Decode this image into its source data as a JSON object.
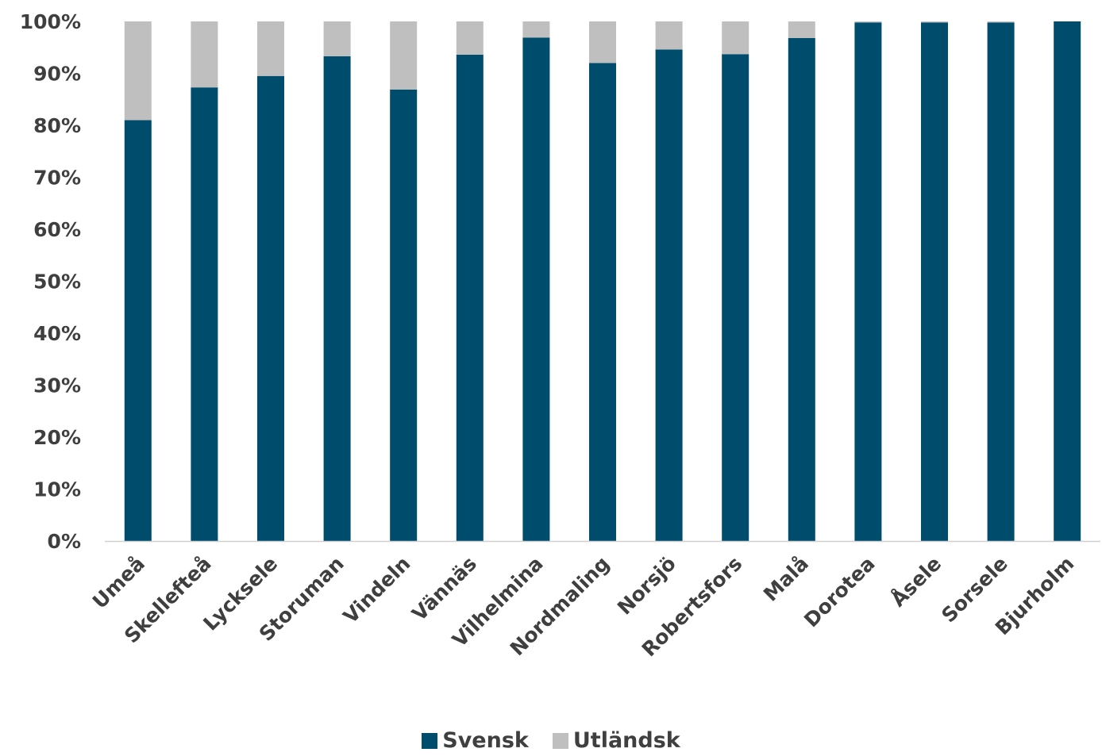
{
  "chart_data": {
    "type": "bar",
    "stacked": true,
    "percent": true,
    "categories": [
      "Umeå",
      "Skellefteå",
      "Lycksele",
      "Storuman",
      "Vindeln",
      "Vännäs",
      "Vilhelmina",
      "Nordmaling",
      "Norsjö",
      "Robertsfors",
      "Malå",
      "Dorotea",
      "Åsele",
      "Sorsele",
      "Bjurholm"
    ],
    "series": [
      {
        "name": "Svensk",
        "color": "#004c6d",
        "values": [
          81,
          87.3,
          89.5,
          93.3,
          86.9,
          93.6,
          96.9,
          92,
          94.6,
          93.7,
          96.8,
          99.8,
          99.8,
          99.8,
          100
        ]
      },
      {
        "name": "Utländsk",
        "color": "#bfbfbf",
        "values": [
          19,
          12.7,
          10.5,
          6.7,
          13.1,
          6.4,
          3.1,
          8,
          5.4,
          6.3,
          3.2,
          0.2,
          0.2,
          0.2,
          0
        ]
      }
    ],
    "ylim": [
      0,
      100
    ],
    "yticks": [
      "0%",
      "10%",
      "20%",
      "30%",
      "40%",
      "50%",
      "60%",
      "70%",
      "80%",
      "90%",
      "100%"
    ],
    "title": "",
    "xlabel": "",
    "ylabel": "",
    "grid": false,
    "legend_position": "bottom"
  }
}
